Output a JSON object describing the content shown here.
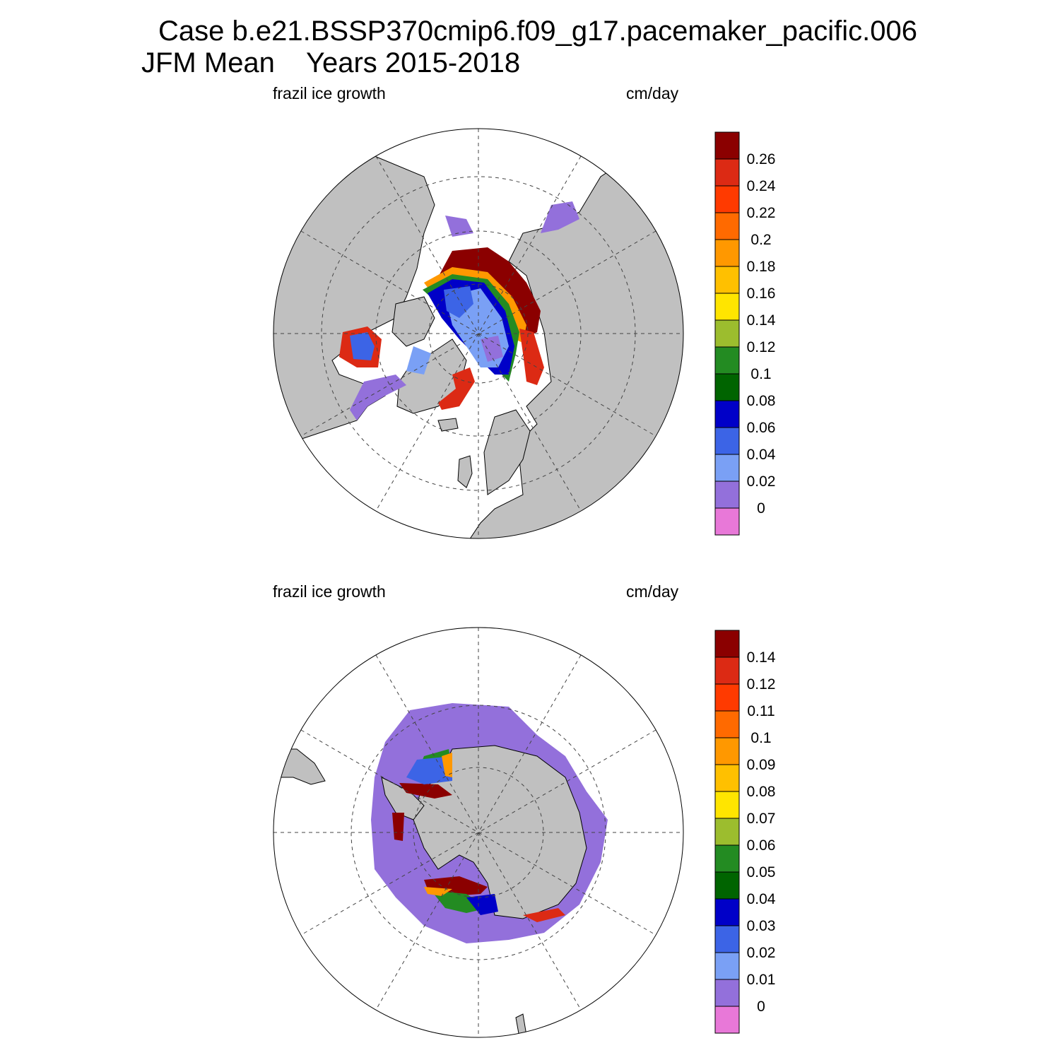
{
  "header": {
    "case_line": "Case b.e21.BSSP370cmip6.f09_g17.pacemaker_pacific.006",
    "season": "JFM Mean",
    "years": "Years 2015-2018"
  },
  "panels": [
    {
      "variable": "frazil ice growth",
      "units": "cm/day",
      "hemisphere": "north",
      "colorbar_labels": [
        "0.26",
        "0.24",
        "0.22",
        "0.2",
        "0.18",
        "0.16",
        "0.14",
        "0.12",
        "0.1",
        "0.08",
        "0.06",
        "0.04",
        "0.02",
        "0"
      ]
    },
    {
      "variable": "frazil ice growth",
      "units": "cm/day",
      "hemisphere": "south",
      "colorbar_labels": [
        "0.14",
        "0.12",
        "0.11",
        "0.1",
        "0.09",
        "0.08",
        "0.07",
        "0.06",
        "0.05",
        "0.04",
        "0.03",
        "0.02",
        "0.01",
        "0"
      ]
    }
  ],
  "colors": {
    "scale_top_to_bottom": [
      "#8b0000",
      "#dc2a14",
      "#ff3a00",
      "#ff6a00",
      "#ff9800",
      "#ffc000",
      "#ffe500",
      "#9cbd2e",
      "#238b22",
      "#006400",
      "#0000c8",
      "#3c64e6",
      "#7aa0f5",
      "#9370db",
      "#e878d8"
    ],
    "land": "#c0c0c0",
    "ocean": "#ffffff"
  }
}
